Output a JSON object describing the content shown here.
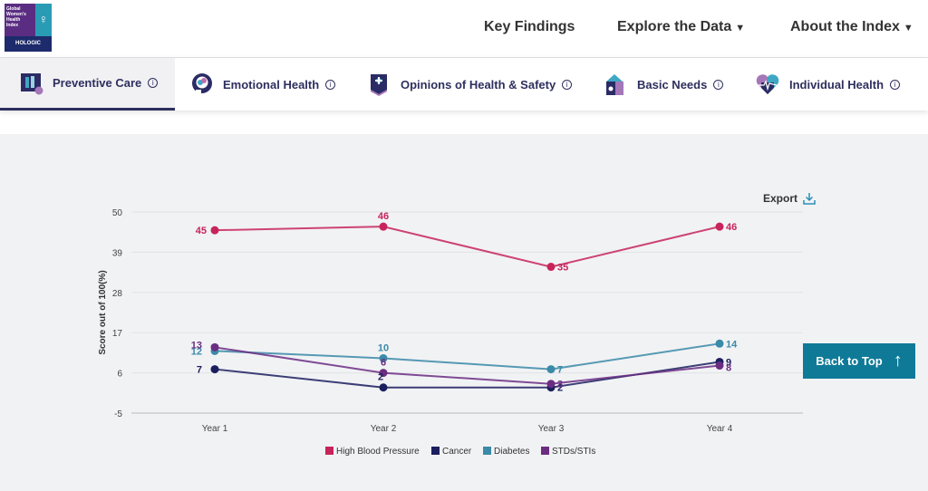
{
  "logo": {
    "lines": [
      "Global",
      "Women's",
      "Health",
      "Index"
    ],
    "symbol": "♀",
    "brand": "HOLOGIC"
  },
  "nav": {
    "items": [
      {
        "label": "Key Findings",
        "dropdown": false
      },
      {
        "label": "Explore the Data",
        "dropdown": true
      },
      {
        "label": "About the Index",
        "dropdown": true
      }
    ],
    "caret": "▼"
  },
  "tabs": [
    {
      "label": "Preventive Care",
      "icon": "preventive-care-icon",
      "active": true
    },
    {
      "label": "Emotional Health",
      "icon": "emotional-health-icon",
      "active": false
    },
    {
      "label": "Opinions of Health & Safety",
      "icon": "opinions-icon",
      "active": false
    },
    {
      "label": "Basic Needs",
      "icon": "basic-needs-icon",
      "active": false
    },
    {
      "label": "Individual Health",
      "icon": "individual-health-icon",
      "active": false
    }
  ],
  "info_glyph": "i",
  "export": {
    "label": "Export"
  },
  "back_to_top": {
    "label": "Back to Top",
    "arrow": "↑"
  },
  "colors": {
    "high_blood_pressure": "#c7245a",
    "cancer": "#1b1f5e",
    "diabetes": "#3a8aa8",
    "stds": "#6b2d82",
    "back_to_top": "#0e7a98"
  },
  "chart_data": {
    "type": "line",
    "title": "",
    "xlabel": "",
    "ylabel": "Score out of 100(%)",
    "categories": [
      "Year 1",
      "Year 2",
      "Year 3",
      "Year 4"
    ],
    "ylim": [
      -5,
      50
    ],
    "yticks": [
      -5,
      6,
      17,
      28,
      39,
      50
    ],
    "grid": true,
    "legend": "bottom",
    "series": [
      {
        "name": "High Blood Pressure",
        "color": "#c7245a",
        "values": [
          45,
          46,
          35,
          46
        ]
      },
      {
        "name": "Cancer",
        "color": "#1b1f5e",
        "values": [
          7,
          2,
          2,
          9
        ]
      },
      {
        "name": "Diabetes",
        "color": "#3a8aa8",
        "values": [
          12,
          10,
          7,
          14
        ]
      },
      {
        "name": "STDs/STIs",
        "color": "#6b2d82",
        "values": [
          13,
          6,
          3,
          8
        ]
      }
    ]
  }
}
